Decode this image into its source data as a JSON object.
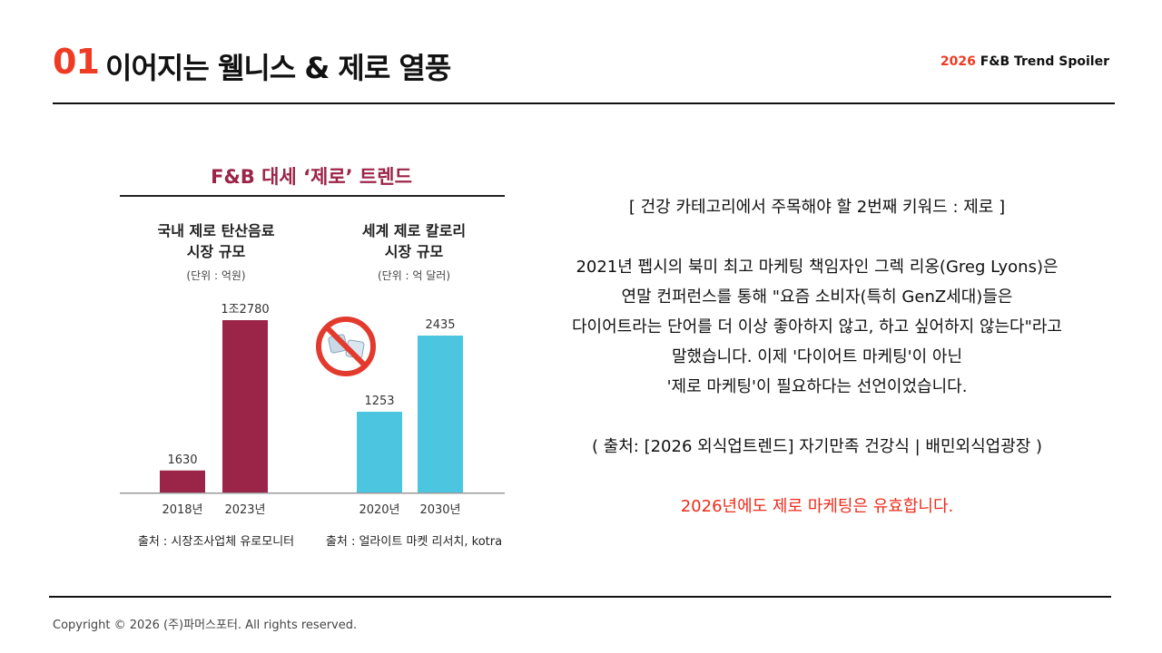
{
  "header": {
    "section_number": "01",
    "section_title": "이어지는 웰니스 & 제로 열풍",
    "brand_year": "2026",
    "brand_name": "F&B Trend Spoiler"
  },
  "colors": {
    "accent": "#ef3b24",
    "domestic_bar": "#9b2449",
    "global_bar": "#4cc6e0",
    "chart_title": "#9b2449"
  },
  "chart_data": {
    "type": "bar",
    "title": "F&B 대세 ‘제로’ 트렌드",
    "panels": [
      {
        "title_line1": "국내 제로 탄산음료",
        "title_line2": "시장 규모",
        "unit": "(단위 : 억원)",
        "categories": [
          "2018년",
          "2023년"
        ],
        "values": [
          1630,
          12780
        ],
        "value_labels": [
          "1630",
          "1조2780"
        ],
        "source": "출처 : 시장조사업체 유로모니터"
      },
      {
        "title_line1": "세계 제로 칼로리",
        "title_line2": "시장 규모",
        "unit": "(단위 : 억 달러)",
        "categories": [
          "2020년",
          "2030년"
        ],
        "values": [
          1253,
          2435
        ],
        "value_labels": [
          "1253",
          "2435"
        ],
        "source": "출처 : 얼라이트 마켓 리서치, kotra",
        "icon": "no-sugar-cubes-icon"
      }
    ]
  },
  "text": {
    "keyword": "[ 건강 카테고리에서 주목해야 할 2번째 키워드 : 제로 ]",
    "body_lines": [
      "2021년 펩시의 북미 최고 마케팅 책임자인 그렉 리옹(Greg Lyons)은",
      "연말 컨퍼런스를 통해 \"요즘 소비자(특히 GenZ세대)들은",
      "다이어트라는 단어를 더 이상 좋아하지 않고, 하고 싶어하지 않는다\"라고",
      "말했습니다. 이제 '다이어트 마케팅'이 아닌",
      "'제로 마케팅'이 필요하다는 선언이었습니다."
    ],
    "source": "( 출처: [2026 외식업트렌드] 자기만족 건강식 | 배민외식업광장 )",
    "conclusion": "2026년에도 제로 마케팅은 유효합니다."
  },
  "footer": {
    "copyright": "Copyright © 2026 (주)파머스포터. All rights reserved."
  }
}
